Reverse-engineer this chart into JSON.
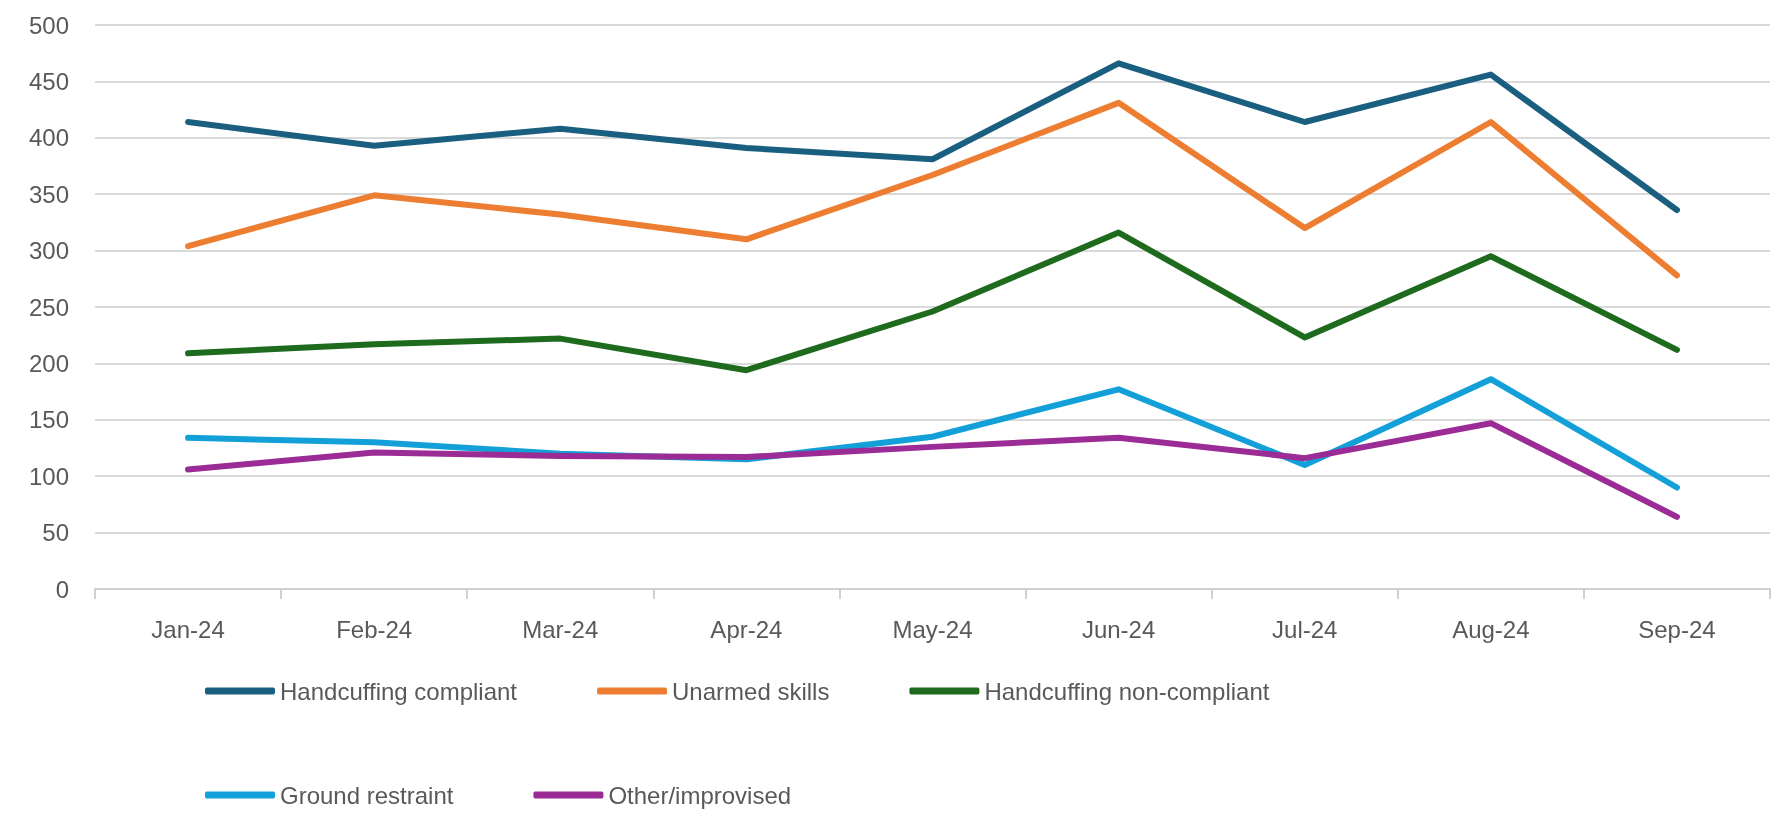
{
  "chart_data": {
    "type": "line",
    "categories": [
      "Jan-24",
      "Feb-24",
      "Mar-24",
      "Apr-24",
      "May-24",
      "Jun-24",
      "Jul-24",
      "Aug-24",
      "Sep-24"
    ],
    "series": [
      {
        "name": "Handcuffing compliant",
        "color": "#1a5e80",
        "values": [
          414,
          393,
          408,
          391,
          381,
          466,
          414,
          456,
          336
        ]
      },
      {
        "name": "Unarmed skills",
        "color": "#ed7d31",
        "values": [
          304,
          349,
          332,
          310,
          367,
          431,
          320,
          414,
          278
        ]
      },
      {
        "name": "Handcuffing non-compliant",
        "color": "#1e6b1e",
        "values": [
          209,
          217,
          222,
          194,
          246,
          316,
          223,
          295,
          212
        ]
      },
      {
        "name": "Ground restraint",
        "color": "#13a0d8",
        "values": [
          134,
          130,
          120,
          115,
          135,
          177,
          110,
          186,
          90
        ]
      },
      {
        "name": "Other/improvised",
        "color": "#9b2c96",
        "values": [
          106,
          121,
          118,
          117,
          126,
          134,
          116,
          147,
          64
        ]
      }
    ],
    "ylim": [
      0,
      500
    ],
    "yticks": [
      0,
      50,
      100,
      150,
      200,
      250,
      300,
      350,
      400,
      450,
      500
    ],
    "grid": "y",
    "legend": "bottom",
    "marker": "none",
    "line_style": "solid"
  }
}
